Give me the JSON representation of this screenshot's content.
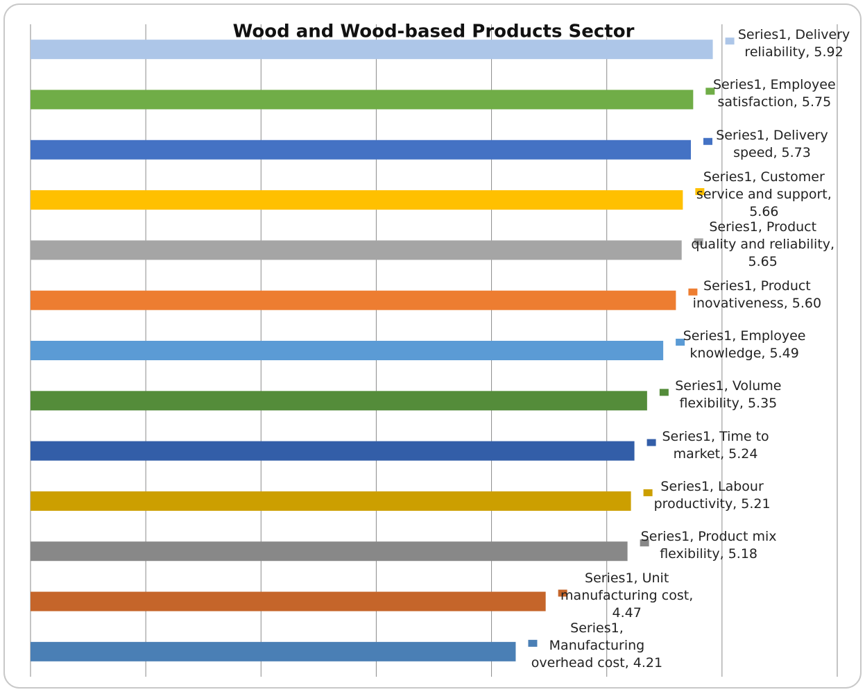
{
  "chart_data": {
    "type": "bar",
    "orientation": "horizontal",
    "title": "Wood and Wood-based Products Sector",
    "series": [
      {
        "name": "Series1",
        "values": [
          5.92,
          5.75,
          5.73,
          5.66,
          5.65,
          5.6,
          5.49,
          5.35,
          5.24,
          5.21,
          5.18,
          4.47,
          4.21
        ],
        "value_labels": [
          "Series1, Delivery reliability, 5.92",
          "Series1, Employee satisfaction, 5.75",
          "Series1, Delivery speed, 5.73",
          "Series1, Customer service and support, 5.66",
          "Series1, Product quality and reliability, 5.65",
          "Series1, Product inovativeness, 5.60",
          "Series1, Employee knowledge, 5.49",
          "Series1, Volume flexibility, 5.35",
          "Series1, Time to market, 5.24",
          "Series1, Labour productivity, 5.21",
          "Series1, Product mix flexibility, 5.18",
          "Series1, Unit manufacturing cost, 4.47",
          "Series1, Manufacturing overhead cost, 4.21"
        ],
        "colors": [
          "#adc6e8",
          "#70ad47",
          "#4472c4",
          "#ffc000",
          "#a5a5a5",
          "#ed7d31",
          "#5b9bd5",
          "#548c3a",
          "#335ea8",
          "#cc9f00",
          "#888888",
          "#c5652a",
          "#4a7fb5"
        ]
      }
    ],
    "xlim": [
      0,
      7
    ],
    "xticks": [
      0,
      1,
      2,
      3,
      4,
      5,
      6,
      7
    ],
    "grid": true
  }
}
